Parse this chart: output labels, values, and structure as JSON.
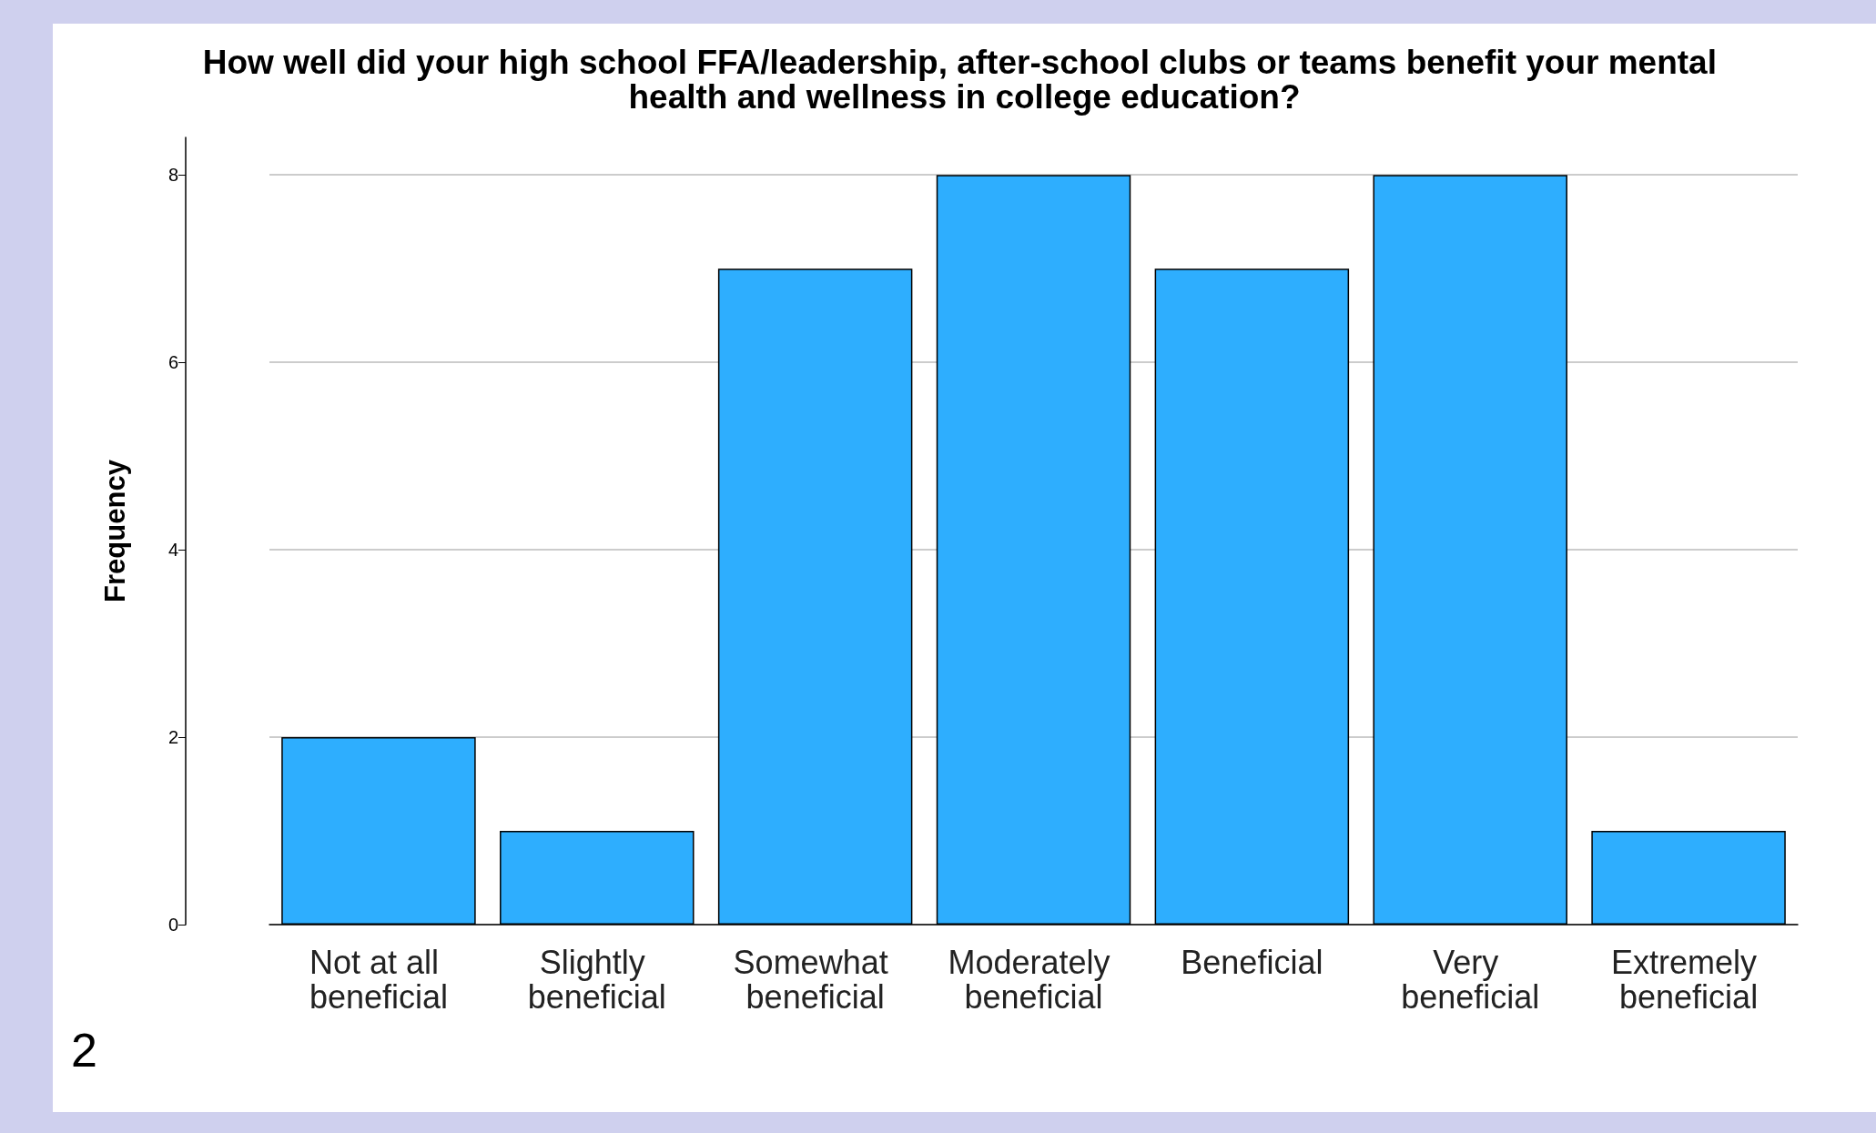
{
  "chart_data": {
    "type": "bar",
    "title": "How well did your high school FFA/leadership, after-school clubs or teams benefit your mental health and wellness in college education?",
    "ylabel": "Frequency",
    "categories": [
      "Not at all beneficial",
      "Slightly beneficial",
      "Somewhat beneficial",
      "Moderately beneficial",
      "Beneficial",
      "Very beneficial",
      "Extremely beneficial"
    ],
    "values": [
      2,
      1,
      7,
      8,
      7,
      8,
      1
    ],
    "color": "#2eaefe",
    "ylim": [
      0,
      8.4
    ],
    "yticks": [
      0,
      2,
      4,
      6,
      8
    ],
    "grid": "y",
    "annotations": [
      "2"
    ]
  }
}
